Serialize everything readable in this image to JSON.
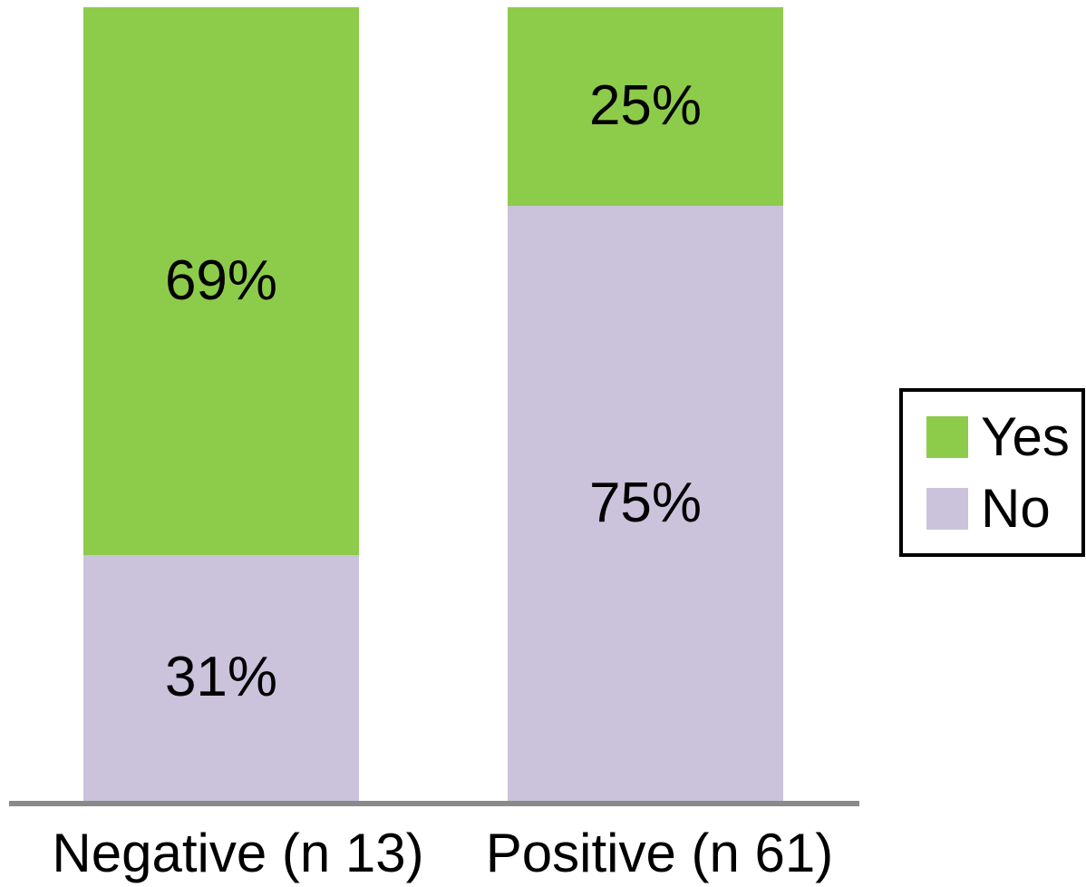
{
  "chart_data": {
    "type": "bar",
    "stacked": true,
    "orientation": "vertical",
    "title": "",
    "xlabel": "",
    "ylabel": "",
    "unit": "%",
    "ylim": [
      0,
      100
    ],
    "grid": false,
    "categories": [
      "Negative (n 13)",
      "Positive (n 61)"
    ],
    "series": [
      {
        "name": "Yes",
        "color": "#8dcc4a",
        "values": [
          69,
          25
        ]
      },
      {
        "name": "No",
        "color": "#cbc3db",
        "values": [
          31,
          75
        ]
      }
    ],
    "value_labels": [
      [
        "69%",
        "31%"
      ],
      [
        "25%",
        "75%"
      ]
    ],
    "legend": {
      "position": "right",
      "border_color": "#000000",
      "items": [
        {
          "label": "Yes",
          "color": "#8dcc4a"
        },
        {
          "label": "No",
          "color": "#cbc3db"
        }
      ]
    },
    "axis_line_color": "#8a8a8a",
    "text_color": "#000000",
    "background_color": "#ffffff"
  }
}
